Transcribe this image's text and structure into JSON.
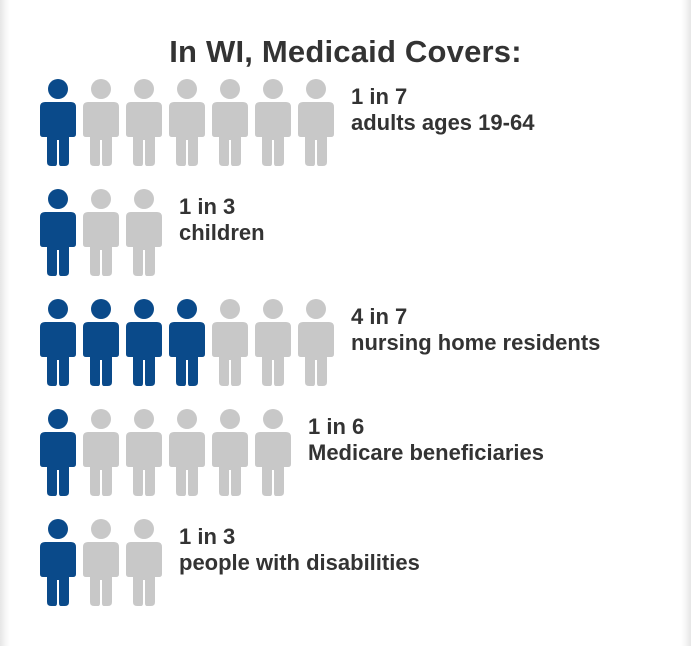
{
  "title": "In WI, Medicaid Covers:",
  "colors": {
    "filled": "#0a4a8a",
    "empty": "#c8c8c8",
    "text": "#333333"
  },
  "chart_data": {
    "type": "pictograph",
    "title": "In WI, Medicaid Covers:",
    "rows": [
      {
        "ratio_label": "1 in 7",
        "group": "adults ages 19-64",
        "covered": 1,
        "total": 7
      },
      {
        "ratio_label": "1 in 3",
        "group": "children",
        "covered": 1,
        "total": 3
      },
      {
        "ratio_label": "4 in 7",
        "group": "nursing home residents",
        "covered": 4,
        "total": 7
      },
      {
        "ratio_label": "1 in 6",
        "group": "Medicare beneficiaries",
        "covered": 1,
        "total": 6
      },
      {
        "ratio_label": "1 in 3",
        "group": "people with disabilities",
        "covered": 1,
        "total": 3
      }
    ]
  }
}
